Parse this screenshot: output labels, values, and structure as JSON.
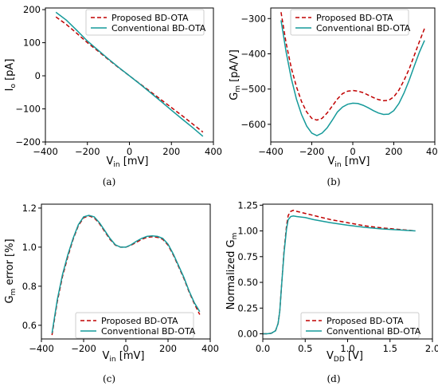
{
  "colors": {
    "proposed": "#c00000",
    "conventional": "#159a9a"
  },
  "chart_data": [
    {
      "type": "line",
      "caption": "(a)",
      "xlabel": "V",
      "xlabel_sub": "in",
      "xlabel_unit": " [mV]",
      "ylabel": "I",
      "ylabel_sub": "o",
      "ylabel_unit": " [pA]",
      "xlim": [
        -400,
        400
      ],
      "ylim": [
        -200,
        205
      ],
      "xticks": [
        -400,
        -200,
        0,
        200,
        400
      ],
      "yticks": [
        -200,
        -100,
        0,
        100,
        200
      ],
      "xticklabels": [
        "−400",
        "−200",
        "0",
        "200",
        "400"
      ],
      "yticklabels": [
        "−200",
        "−100",
        "0",
        "100",
        "200"
      ],
      "legend": "top-right",
      "series": [
        {
          "name": "Proposed BD-OTA",
          "style": "dashed",
          "x": [
            -350,
            -300,
            -250,
            -200,
            -150,
            -100,
            -50,
            0,
            50,
            100,
            150,
            200,
            250,
            300,
            350
          ],
          "y": [
            178,
            155,
            128,
            100,
            75,
            49,
            24,
            0,
            -24,
            -48,
            -72,
            -96,
            -120,
            -145,
            -170
          ]
        },
        {
          "name": "Conventional BD-OTA",
          "style": "solid",
          "x": [
            -350,
            -300,
            -250,
            -200,
            -150,
            -100,
            -50,
            0,
            50,
            100,
            150,
            200,
            250,
            300,
            350
          ],
          "y": [
            192,
            168,
            137,
            105,
            78,
            51,
            25,
            0,
            -25,
            -51,
            -77,
            -104,
            -130,
            -156,
            -183
          ]
        }
      ]
    },
    {
      "type": "line",
      "caption": "(b)",
      "xlabel": "V",
      "xlabel_sub": "in",
      "xlabel_unit": " [mV]",
      "ylabel": "G",
      "ylabel_sub": "m",
      "ylabel_unit": " [pA/V]",
      "xlim": [
        -400,
        400
      ],
      "ylim": [
        -650,
        -270
      ],
      "xticks": [
        -400,
        -200,
        0,
        200,
        400
      ],
      "yticks": [
        -600,
        -500,
        -400,
        -300
      ],
      "xticklabels": [
        "−400",
        "−200",
        "0",
        "200",
        "400"
      ],
      "yticklabels": [
        "−600",
        "−500",
        "−400",
        "−300"
      ],
      "legend": "top-right",
      "series": [
        {
          "name": "Proposed BD-OTA",
          "style": "dashed",
          "x": [
            -350,
            -325,
            -300,
            -275,
            -250,
            -225,
            -200,
            -175,
            -150,
            -125,
            -100,
            -75,
            -50,
            -25,
            0,
            25,
            50,
            75,
            100,
            125,
            150,
            175,
            200,
            225,
            250,
            275,
            300,
            325,
            350
          ],
          "y": [
            -282,
            -370,
            -440,
            -493,
            -535,
            -565,
            -583,
            -588,
            -583,
            -568,
            -548,
            -528,
            -513,
            -506,
            -504,
            -506,
            -510,
            -517,
            -524,
            -530,
            -533,
            -532,
            -522,
            -503,
            -475,
            -443,
            -404,
            -365,
            -328
          ]
        },
        {
          "name": "Conventional BD-OTA",
          "style": "solid",
          "x": [
            -350,
            -325,
            -300,
            -275,
            -250,
            -225,
            -200,
            -175,
            -150,
            -125,
            -100,
            -75,
            -50,
            -25,
            0,
            25,
            50,
            75,
            100,
            125,
            150,
            175,
            200,
            225,
            250,
            275,
            300,
            325,
            350
          ],
          "y": [
            -305,
            -395,
            -470,
            -528,
            -572,
            -605,
            -625,
            -632,
            -625,
            -610,
            -588,
            -565,
            -551,
            -543,
            -540,
            -541,
            -546,
            -553,
            -561,
            -568,
            -572,
            -571,
            -561,
            -541,
            -511,
            -475,
            -434,
            -395,
            -362
          ]
        }
      ]
    },
    {
      "type": "line",
      "caption": "(c)",
      "xlabel": "V",
      "xlabel_sub": "in",
      "xlabel_unit": " [mV]",
      "ylabel": "G",
      "ylabel_sub": "m",
      "ylabel_unit": " error [%]",
      "xlim": [
        -400,
        400
      ],
      "ylim": [
        0.53,
        1.22
      ],
      "xticks": [
        -400,
        -200,
        0,
        200,
        400
      ],
      "yticks": [
        0.6,
        0.8,
        1.0,
        1.2
      ],
      "xticklabels": [
        "−400",
        "−200",
        "0",
        "200",
        "400"
      ],
      "yticklabels": [
        "0.6",
        "0.8",
        "1.0",
        "1.2"
      ],
      "legend": "bottom-right",
      "series": [
        {
          "name": "Proposed BD-OTA",
          "style": "dashed",
          "x": [
            -350,
            -325,
            -300,
            -275,
            -250,
            -225,
            -200,
            -175,
            -150,
            -125,
            -100,
            -75,
            -50,
            -25,
            0,
            25,
            50,
            75,
            100,
            125,
            150,
            175,
            200,
            225,
            250,
            275,
            300,
            325,
            350
          ],
          "y": [
            0.55,
            0.72,
            0.85,
            0.95,
            1.04,
            1.11,
            1.15,
            1.16,
            1.15,
            1.12,
            1.08,
            1.04,
            1.01,
            1.0,
            1.0,
            1.01,
            1.025,
            1.04,
            1.05,
            1.053,
            1.05,
            1.04,
            1.01,
            0.96,
            0.9,
            0.84,
            0.77,
            0.71,
            0.655
          ]
        },
        {
          "name": "Conventional BD-OTA",
          "style": "solid",
          "x": [
            -350,
            -325,
            -300,
            -275,
            -250,
            -225,
            -200,
            -175,
            -150,
            -125,
            -100,
            -75,
            -50,
            -25,
            0,
            25,
            50,
            75,
            100,
            125,
            150,
            175,
            200,
            225,
            250,
            275,
            300,
            325,
            350
          ],
          "y": [
            0.56,
            0.73,
            0.86,
            0.96,
            1.045,
            1.115,
            1.155,
            1.163,
            1.155,
            1.125,
            1.085,
            1.045,
            1.012,
            1.0,
            1.0,
            1.012,
            1.03,
            1.045,
            1.055,
            1.058,
            1.055,
            1.045,
            1.015,
            0.965,
            0.905,
            0.845,
            0.775,
            0.715,
            0.67
          ]
        }
      ]
    },
    {
      "type": "line",
      "caption": "(d)",
      "xlabel": "V",
      "xlabel_sub": "DD",
      "xlabel_unit": " [V]",
      "ylabel": "Normalized G",
      "ylabel_sub": "m",
      "ylabel_unit": "",
      "xlim": [
        0.0,
        2.0
      ],
      "ylim": [
        -0.05,
        1.26
      ],
      "xticks": [
        0.0,
        0.5,
        1.0,
        1.5,
        2.0
      ],
      "yticks": [
        0.0,
        0.25,
        0.5,
        0.75,
        1.0,
        1.25
      ],
      "xticklabels": [
        "0.0",
        "0.5",
        "1.0",
        "1.5",
        "2.0"
      ],
      "yticklabels": [
        "0.00",
        "0.25",
        "0.50",
        "0.75",
        "1.00",
        "1.25"
      ],
      "legend": "bottom-right",
      "series": [
        {
          "name": "Proposed BD-OTA",
          "style": "dashed",
          "x": [
            0.0,
            0.05,
            0.1,
            0.15,
            0.18,
            0.2,
            0.22,
            0.25,
            0.28,
            0.3,
            0.33,
            0.36,
            0.4,
            0.5,
            0.6,
            0.8,
            1.0,
            1.2,
            1.4,
            1.6,
            1.8
          ],
          "y": [
            0.0,
            0.0,
            0.005,
            0.03,
            0.1,
            0.22,
            0.45,
            0.8,
            1.05,
            1.15,
            1.19,
            1.2,
            1.19,
            1.17,
            1.15,
            1.11,
            1.08,
            1.05,
            1.03,
            1.015,
            1.0
          ]
        },
        {
          "name": "Conventional BD-OTA",
          "style": "solid",
          "x": [
            0.0,
            0.05,
            0.1,
            0.15,
            0.18,
            0.2,
            0.22,
            0.25,
            0.28,
            0.3,
            0.33,
            0.36,
            0.4,
            0.5,
            0.6,
            0.8,
            1.0,
            1.2,
            1.4,
            1.6,
            1.8
          ],
          "y": [
            0.0,
            0.0,
            0.005,
            0.03,
            0.1,
            0.22,
            0.45,
            0.78,
            1.02,
            1.11,
            1.14,
            1.145,
            1.14,
            1.13,
            1.11,
            1.08,
            1.055,
            1.035,
            1.02,
            1.01,
            1.0
          ]
        }
      ]
    }
  ]
}
